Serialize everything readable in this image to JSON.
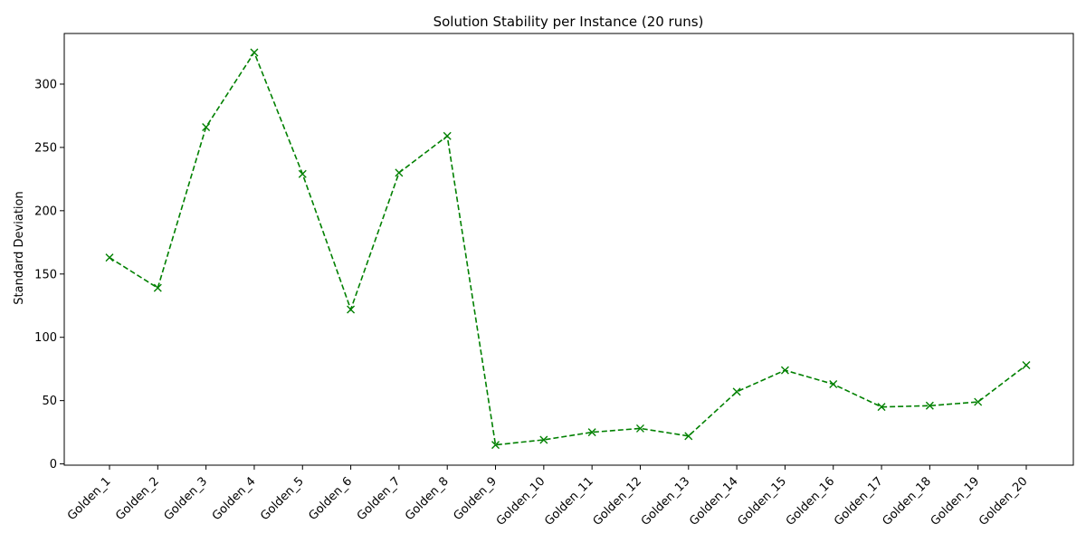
{
  "chart_data": {
    "type": "line",
    "title": "Solution Stability per Instance (20 runs)",
    "xlabel": "",
    "ylabel": "Standard Deviation",
    "categories": [
      "Golden_1",
      "Golden_2",
      "Golden_3",
      "Golden_4",
      "Golden_5",
      "Golden_6",
      "Golden_7",
      "Golden_8",
      "Golden_9",
      "Golden_10",
      "Golden_11",
      "Golden_12",
      "Golden_13",
      "Golden_14",
      "Golden_15",
      "Golden_16",
      "Golden_17",
      "Golden_18",
      "Golden_19",
      "Golden_20"
    ],
    "values": [
      163,
      139,
      266,
      325,
      229,
      122,
      230,
      259,
      15,
      19,
      25,
      28,
      22,
      57,
      74,
      63,
      45,
      46,
      49,
      78
    ],
    "ylim": [
      -1,
      340
    ],
    "yticks": [
      0,
      50,
      100,
      150,
      200,
      250,
      300
    ],
    "line_color": "#008000",
    "line_style": "dashed",
    "marker": "x",
    "grid": false,
    "legend": "none"
  }
}
